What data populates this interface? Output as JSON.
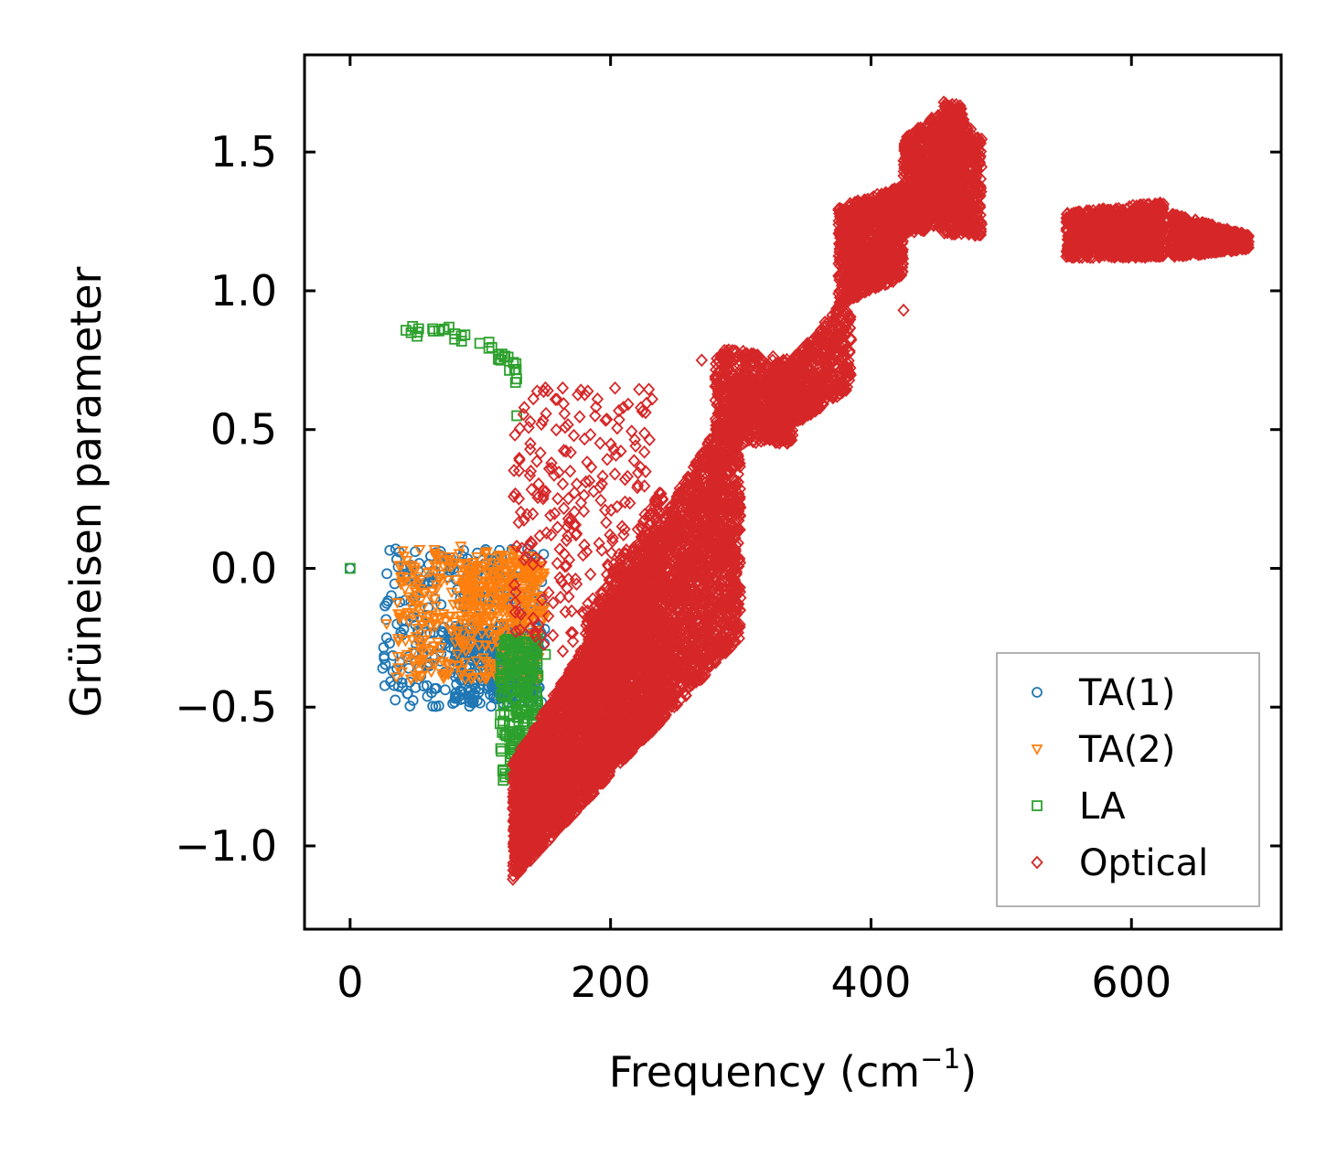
{
  "chart_data": {
    "type": "scatter",
    "title": "",
    "xlabel": "Frequency (cm",
    "xlabel_sup": "−1",
    "xlabel_suffix": ")",
    "ylabel": "Grüneisen parameter",
    "xlim": [
      -35,
      715
    ],
    "ylim": [
      -1.3,
      1.85
    ],
    "xticks": [
      0,
      200,
      400,
      600
    ],
    "xtick_labels": [
      "0",
      "200",
      "400",
      "600"
    ],
    "yticks": [
      -1.0,
      -0.5,
      0.0,
      0.5,
      1.0,
      1.5
    ],
    "ytick_labels": [
      "−1.0",
      "−0.5",
      "0.0",
      "0.5",
      "1.0",
      "1.5"
    ],
    "grid": false,
    "legend_position": "bottom-right",
    "series": [
      {
        "name": "TA(1)",
        "label": "TA(1)",
        "marker": "circle",
        "color": "#1f77b4",
        "clusters": [
          {
            "x": [
              25,
              150
            ],
            "y": [
              -0.5,
              0.07
            ],
            "n": 320
          },
          {
            "x": [
              80,
              145
            ],
            "y": [
              -0.48,
              -0.2
            ],
            "n": 260
          }
        ],
        "points": [
          [
            0,
            0.0
          ],
          [
            25,
            -0.36
          ],
          [
            28,
            -0.25
          ],
          [
            35,
            0.07
          ],
          [
            40,
            -0.24
          ],
          [
            45,
            -0.36
          ],
          [
            50,
            0.06
          ],
          [
            60,
            -0.05
          ],
          [
            70,
            0.04
          ]
        ]
      },
      {
        "name": "TA(2)",
        "label": "TA(2)",
        "marker": "triangle-down",
        "color": "#ff7f0e",
        "clusters": [
          {
            "x": [
              35,
              145
            ],
            "y": [
              -0.4,
              0.07
            ],
            "n": 360
          },
          {
            "x": [
              85,
              150
            ],
            "y": [
              -0.2,
              0.02
            ],
            "n": 200
          }
        ],
        "points": [
          [
            28,
            -0.2
          ],
          [
            38,
            -0.18
          ],
          [
            55,
            -0.3
          ],
          [
            85,
            0.08
          ],
          [
            105,
            0.06
          ]
        ]
      },
      {
        "name": "LA",
        "label": "LA",
        "marker": "square",
        "color": "#2ca02c",
        "curve": [
          [
            40,
            0.84
          ],
          [
            60,
            0.86
          ],
          [
            80,
            0.85
          ],
          [
            100,
            0.83
          ],
          [
            115,
            0.78
          ],
          [
            125,
            0.73
          ],
          [
            130,
            0.7
          ]
        ],
        "clusters": [
          {
            "x": [
              115,
              145
            ],
            "y": [
              -0.8,
              -0.25
            ],
            "n": 260
          }
        ],
        "points": [
          [
            0,
            0.0
          ],
          [
            127,
            0.67
          ],
          [
            128,
            0.55
          ],
          [
            150,
            -0.31
          ]
        ]
      },
      {
        "name": "Optical",
        "label": "Optical",
        "marker": "diamond",
        "color": "#d62728",
        "bands": [
          {
            "x": [
              125,
              300
            ],
            "ylo": [
              -1.12,
              -0.25
            ],
            "yhi": [
              -0.7,
              0.65
            ],
            "n": 5000
          },
          {
            "x": [
              180,
              240
            ],
            "ylo": [
              -0.8,
              -0.55
            ],
            "yhi": [
              -0.2,
              0.3
            ],
            "n": 900
          },
          {
            "x": [
              280,
              340
            ],
            "ylo": [
              0.45,
              0.45
            ],
            "yhi": [
              0.8,
              0.75
            ],
            "n": 700
          },
          {
            "x": [
              320,
              385
            ],
            "ylo": [
              0.45,
              0.65
            ],
            "yhi": [
              0.65,
              1.0
            ],
            "n": 700
          },
          {
            "x": [
              375,
              425
            ],
            "ylo": [
              0.95,
              1.05
            ],
            "yhi": [
              1.3,
              1.38
            ],
            "n": 900
          },
          {
            "x": [
              425,
              470
            ],
            "ylo": [
              1.2,
              1.25
            ],
            "yhi": [
              1.55,
              1.7
            ],
            "n": 900
          },
          {
            "x": [
              455,
              485
            ],
            "ylo": [
              1.2,
              1.2
            ],
            "yhi": [
              1.7,
              1.55
            ],
            "n": 500
          },
          {
            "x": [
              550,
              625
            ],
            "ylo": [
              1.12,
              1.12
            ],
            "yhi": [
              1.28,
              1.32
            ],
            "n": 900
          },
          {
            "x": [
              630,
              690
            ],
            "ylo": [
              1.12,
              1.15
            ],
            "yhi": [
              1.28,
              1.2
            ],
            "n": 700
          }
        ],
        "scatter_region": {
          "x": [
            125,
            230
          ],
          "y": [
            -0.3,
            0.65
          ],
          "n": 260
        },
        "points": [
          [
            125,
            -1.12
          ],
          [
            150,
            0.65
          ],
          [
            190,
            0.61
          ],
          [
            232,
            0.61
          ],
          [
            270,
            0.75
          ],
          [
            390,
            0.98
          ],
          [
            425,
            0.93
          ]
        ]
      }
    ]
  }
}
